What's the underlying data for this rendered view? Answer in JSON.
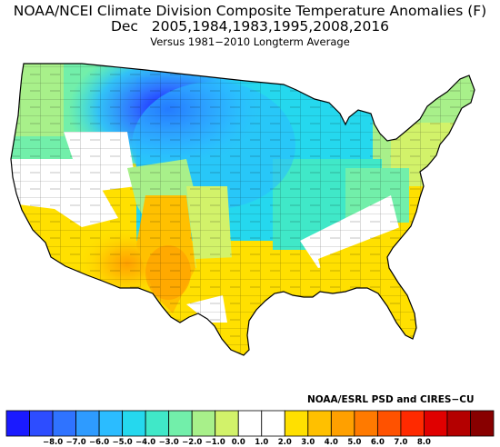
{
  "title": {
    "line1": "NOAA/NCEI Climate Division Composite Temperature Anomalies (F)",
    "line2": "Dec   2005,1984,1983,1995,2008,2016",
    "line3": "Versus 1981−2010 Longterm Average"
  },
  "credit": "NOAA/ESRL PSD and CIRES−CU",
  "map": {
    "region": "Contiguous United States climate divisions",
    "pattern": "Cold anomalies centered over Montana and the Northern Plains; warm anomalies over the Southwest, Gulf Coast and Southeast; mild/cool over the Northeast"
  },
  "legend": {
    "colors": [
      "#1a1aff",
      "#2d4dff",
      "#2f73ff",
      "#2e9bff",
      "#2bbcff",
      "#25d8ee",
      "#40e8c8",
      "#72efaa",
      "#a8f08a",
      "#d2f26a",
      "#ffffff",
      "#ffffff",
      "#ffe000",
      "#ffc000",
      "#ffa000",
      "#ff7a00",
      "#ff5200",
      "#ff2a00",
      "#e00000",
      "#b40000",
      "#880000"
    ],
    "ticks": [
      "−8.0",
      "−7.0",
      "−6.0",
      "−5.0",
      "−4.0",
      "−3.0",
      "−2.0",
      "−1.0",
      "0.0",
      "1.0",
      "2.0",
      "3.0",
      "4.0",
      "5.0",
      "6.0",
      "7.0",
      "8.0"
    ]
  }
}
